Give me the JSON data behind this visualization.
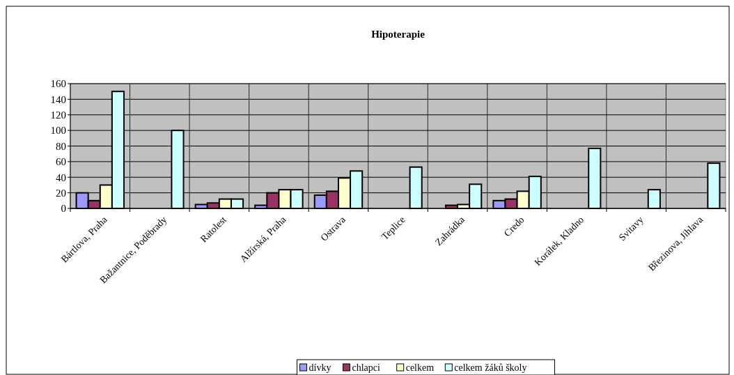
{
  "chart_data": {
    "type": "bar",
    "title": "Hipoterapie",
    "categories": [
      "Bártlova, Praha",
      "Bažantnice, Poděbrady",
      "Ratolest",
      "Alžírská, Praha",
      "Ostrava",
      "Teplice",
      "Zahrádka",
      "Credo",
      "Korálek, Kladno",
      "Svitavy",
      "Březinova, Jihlava"
    ],
    "series": [
      {
        "name": "dívky",
        "color": "#9999ff",
        "values": [
          20,
          null,
          5,
          4,
          17,
          null,
          null,
          10,
          null,
          null,
          null
        ]
      },
      {
        "name": "chlapci",
        "color": "#993366",
        "values": [
          10,
          null,
          7,
          20,
          22,
          null,
          4,
          12,
          null,
          null,
          null
        ]
      },
      {
        "name": "celkem",
        "color": "#ffffcc",
        "values": [
          30,
          null,
          12,
          24,
          39,
          null,
          5,
          22,
          null,
          null,
          null
        ]
      },
      {
        "name": "celkem žáků školy",
        "color": "#ccffff",
        "values": [
          150,
          100,
          12,
          24,
          48,
          53,
          31,
          41,
          77,
          24,
          58
        ]
      }
    ],
    "ylim": [
      0,
      160
    ],
    "yticks": [
      0,
      20,
      40,
      60,
      80,
      100,
      120,
      140,
      160
    ],
    "grid": true,
    "legend": "bottom"
  }
}
